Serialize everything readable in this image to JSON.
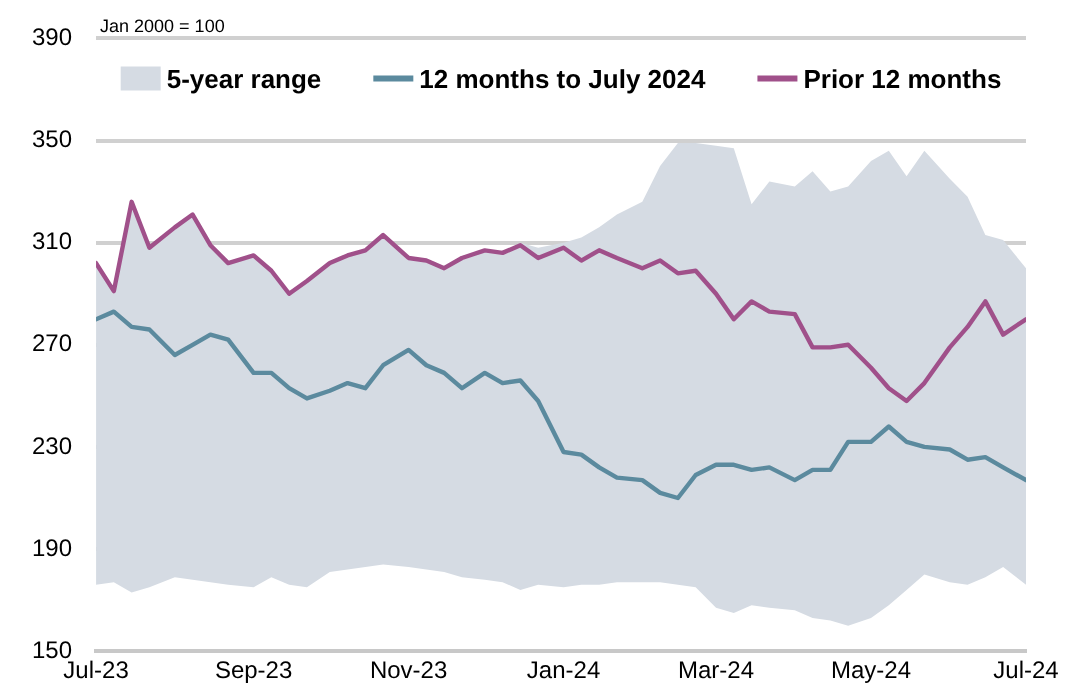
{
  "chart_data": {
    "type": "line",
    "annotations": [
      "Jan 2000 = 100"
    ],
    "x": [
      "2023-07-01",
      "2023-07-08",
      "2023-07-15",
      "2023-07-22",
      "2023-08-01",
      "2023-08-08",
      "2023-08-15",
      "2023-08-22",
      "2023-09-01",
      "2023-09-08",
      "2023-09-15",
      "2023-09-22",
      "2023-10-01",
      "2023-10-08",
      "2023-10-15",
      "2023-10-22",
      "2023-11-01",
      "2023-11-08",
      "2023-11-15",
      "2023-11-22",
      "2023-12-01",
      "2023-12-08",
      "2023-12-15",
      "2023-12-22",
      "2024-01-01",
      "2024-01-08",
      "2024-01-15",
      "2024-01-22",
      "2024-02-01",
      "2024-02-08",
      "2024-02-15",
      "2024-02-22",
      "2024-03-01",
      "2024-03-08",
      "2024-03-15",
      "2024-03-22",
      "2024-04-01",
      "2024-04-08",
      "2024-04-15",
      "2024-04-22",
      "2024-05-01",
      "2024-05-08",
      "2024-05-15",
      "2024-05-22",
      "2024-06-01",
      "2024-06-08",
      "2024-06-15",
      "2024-06-22",
      "2024-07-01"
    ],
    "series": [
      {
        "name": "5-year range",
        "type": "area",
        "color": "#d5dbe3",
        "lower": [
          176,
          177,
          173,
          175,
          179,
          178,
          177,
          176,
          175,
          179,
          176,
          175,
          181,
          182,
          183,
          184,
          183,
          182,
          181,
          179,
          178,
          177,
          174,
          176,
          175,
          176,
          176,
          177,
          177,
          177,
          176,
          175,
          167,
          165,
          168,
          167,
          166,
          163,
          162,
          160,
          163,
          168,
          174,
          180,
          177,
          176,
          179,
          183,
          176
        ],
        "values": [
          null,
          null,
          null,
          null,
          null,
          null,
          null,
          null,
          null,
          null,
          null,
          null,
          null,
          null,
          null,
          null,
          null,
          null,
          null,
          null,
          null,
          null,
          null,
          null,
          null,
          null,
          null,
          null,
          null,
          null,
          null,
          null,
          null,
          null,
          null,
          null,
          null,
          null,
          null,
          null,
          null,
          null,
          null,
          null,
          null,
          null,
          null,
          null,
          null
        ],
        "upper": [
          302,
          291,
          326,
          308,
          316,
          321,
          309,
          302,
          305,
          299,
          290,
          295,
          302,
          305,
          307,
          313,
          304,
          303,
          300,
          304,
          307,
          306,
          310,
          308,
          310,
          312,
          316,
          321,
          326,
          340,
          349,
          349,
          348,
          347,
          325,
          334,
          332,
          338,
          330,
          332,
          342,
          346,
          336,
          346,
          335,
          328,
          313,
          311,
          300
        ]
      },
      {
        "name": "12 months to July 2024",
        "type": "line",
        "color": "#5b8a9e",
        "values": [
          280,
          283,
          277,
          276,
          266,
          270,
          274,
          272,
          259,
          259,
          253,
          249,
          252,
          255,
          253,
          262,
          268,
          262,
          259,
          253,
          259,
          255,
          256,
          248,
          228,
          227,
          222,
          218,
          217,
          212,
          210,
          219,
          223,
          223,
          221,
          222,
          217,
          221,
          221,
          232,
          232,
          238,
          232,
          230,
          229,
          225,
          226,
          222,
          217
        ]
      },
      {
        "name": "Prior 12 months",
        "type": "line",
        "color": "#a0508a",
        "values": [
          302,
          291,
          326,
          308,
          316,
          321,
          309,
          302,
          305,
          299,
          290,
          295,
          302,
          305,
          307,
          313,
          304,
          303,
          300,
          304,
          307,
          306,
          309,
          304,
          308,
          303,
          307,
          304,
          300,
          303,
          298,
          299,
          290,
          280,
          287,
          283,
          282,
          269,
          269,
          270,
          261,
          253,
          248,
          255,
          269,
          277,
          287,
          274,
          280
        ]
      }
    ],
    "xlim": [
      "2023-07-01",
      "2024-07-01"
    ],
    "xticks": [
      {
        "value": "2023-07-01",
        "label": "Jul-23"
      },
      {
        "value": "2023-09-01",
        "label": "Sep-23"
      },
      {
        "value": "2023-11-01",
        "label": "Nov-23"
      },
      {
        "value": "2024-01-01",
        "label": "Jan-24"
      },
      {
        "value": "2024-03-01",
        "label": "Mar-24"
      },
      {
        "value": "2024-05-01",
        "label": "May-24"
      },
      {
        "value": "2024-07-01",
        "label": "Jul-24"
      }
    ],
    "ylim": [
      150,
      390
    ],
    "yticks": [
      150,
      190,
      230,
      270,
      310,
      350,
      390
    ],
    "grid": "y",
    "legend": "top",
    "marker": "none",
    "line_style": "solid"
  }
}
